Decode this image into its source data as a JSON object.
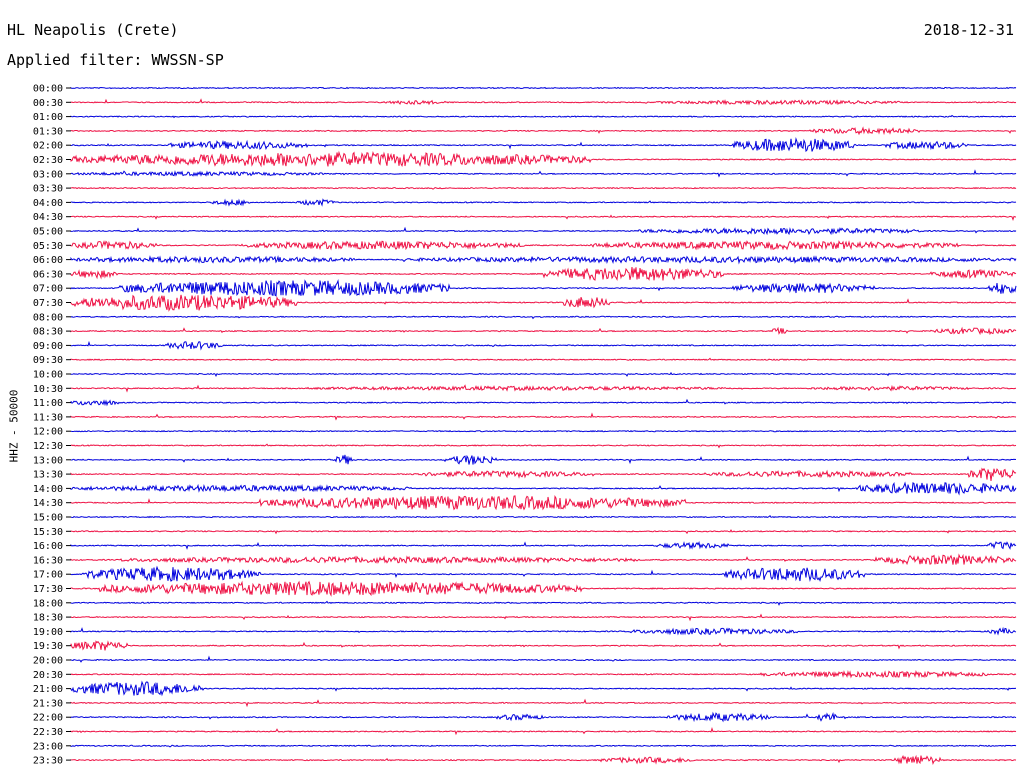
{
  "header": {
    "station": "HL Neapolis (Crete)",
    "date": "2018-12-31",
    "filter_label": "Applied filter:",
    "filter_value": "WWSSN-SP"
  },
  "colors": {
    "even_trace": "#0000dd",
    "odd_trace": "#ee1144",
    "text": "#000000",
    "background": "#ffffff"
  },
  "chart_data": {
    "type": "line",
    "title": "HL Neapolis (Crete)",
    "ylabel": "HHZ - 50000",
    "xlabel": "",
    "row_interval_minutes": 30,
    "rows": [
      {
        "label": "00:00",
        "activity": []
      },
      {
        "label": "00:30",
        "activity": [
          [
            0.33,
            0.4,
            2
          ],
          [
            0.62,
            0.88,
            2
          ]
        ]
      },
      {
        "label": "01:00",
        "activity": []
      },
      {
        "label": "01:30",
        "activity": [
          [
            0.78,
            0.9,
            3
          ]
        ]
      },
      {
        "label": "02:00",
        "activity": [
          [
            0.1,
            0.25,
            4
          ],
          [
            0.7,
            0.83,
            7
          ],
          [
            0.86,
            0.95,
            4
          ]
        ]
      },
      {
        "label": "02:30",
        "activity": [
          [
            0.0,
            0.55,
            7
          ]
        ]
      },
      {
        "label": "03:00",
        "activity": [
          [
            0.0,
            0.27,
            2
          ]
        ]
      },
      {
        "label": "03:30",
        "activity": []
      },
      {
        "label": "04:00",
        "activity": [
          [
            0.15,
            0.19,
            3
          ],
          [
            0.24,
            0.28,
            3
          ]
        ]
      },
      {
        "label": "04:30",
        "activity": []
      },
      {
        "label": "05:00",
        "activity": [
          [
            0.6,
            0.9,
            3
          ]
        ]
      },
      {
        "label": "05:30",
        "activity": [
          [
            0.0,
            0.09,
            4
          ],
          [
            0.18,
            0.48,
            4
          ],
          [
            0.55,
            0.94,
            4
          ]
        ]
      },
      {
        "label": "06:00",
        "activity": [
          [
            0.0,
            0.3,
            3
          ],
          [
            0.35,
            1.0,
            3
          ]
        ]
      },
      {
        "label": "06:30",
        "activity": [
          [
            0.0,
            0.05,
            4
          ],
          [
            0.5,
            0.69,
            7
          ],
          [
            0.91,
            1.0,
            4
          ]
        ]
      },
      {
        "label": "07:00",
        "activity": [
          [
            0.05,
            0.4,
            8
          ],
          [
            0.7,
            0.85,
            5
          ],
          [
            0.97,
            1.0,
            6
          ]
        ]
      },
      {
        "label": "07:30",
        "activity": [
          [
            0.0,
            0.24,
            8
          ],
          [
            0.52,
            0.57,
            6
          ]
        ]
      },
      {
        "label": "08:00",
        "activity": []
      },
      {
        "label": "08:30",
        "activity": [
          [
            0.74,
            0.76,
            3
          ],
          [
            0.91,
            1.0,
            3
          ]
        ]
      },
      {
        "label": "09:00",
        "activity": [
          [
            0.1,
            0.16,
            4
          ]
        ]
      },
      {
        "label": "09:30",
        "activity": []
      },
      {
        "label": "10:00",
        "activity": []
      },
      {
        "label": "10:30",
        "activity": [
          [
            0.25,
            0.7,
            2
          ],
          [
            0.78,
            0.95,
            2
          ]
        ]
      },
      {
        "label": "11:00",
        "activity": [
          [
            0.0,
            0.05,
            3
          ]
        ]
      },
      {
        "label": "11:30",
        "activity": []
      },
      {
        "label": "12:00",
        "activity": []
      },
      {
        "label": "12:30",
        "activity": []
      },
      {
        "label": "13:00",
        "activity": [
          [
            0.28,
            0.3,
            5
          ],
          [
            0.4,
            0.45,
            5
          ]
        ]
      },
      {
        "label": "13:30",
        "activity": [
          [
            0.36,
            0.55,
            3
          ],
          [
            0.67,
            0.89,
            3
          ],
          [
            0.95,
            1.0,
            7
          ]
        ]
      },
      {
        "label": "14:00",
        "activity": [
          [
            0.0,
            0.36,
            3
          ],
          [
            0.83,
            1.0,
            6
          ]
        ]
      },
      {
        "label": "14:30",
        "activity": [
          [
            0.2,
            0.65,
            7
          ]
        ]
      },
      {
        "label": "15:00",
        "activity": []
      },
      {
        "label": "15:30",
        "activity": []
      },
      {
        "label": "16:00",
        "activity": [
          [
            0.62,
            0.7,
            3
          ],
          [
            0.97,
            1.0,
            4
          ]
        ]
      },
      {
        "label": "16:30",
        "activity": [
          [
            0.05,
            0.6,
            3
          ],
          [
            0.85,
            1.0,
            5
          ]
        ]
      },
      {
        "label": "17:00",
        "activity": [
          [
            0.01,
            0.2,
            7
          ],
          [
            0.69,
            0.84,
            7
          ]
        ]
      },
      {
        "label": "17:30",
        "activity": [
          [
            0.03,
            0.54,
            7
          ]
        ]
      },
      {
        "label": "18:00",
        "activity": []
      },
      {
        "label": "18:30",
        "activity": []
      },
      {
        "label": "19:00",
        "activity": [
          [
            0.59,
            0.77,
            3
          ],
          [
            0.97,
            1.0,
            3
          ]
        ]
      },
      {
        "label": "19:30",
        "activity": [
          [
            0.0,
            0.06,
            5
          ]
        ]
      },
      {
        "label": "20:00",
        "activity": []
      },
      {
        "label": "20:30",
        "activity": [
          [
            0.73,
            0.97,
            3
          ]
        ]
      },
      {
        "label": "21:00",
        "activity": [
          [
            0.0,
            0.14,
            7
          ]
        ]
      },
      {
        "label": "21:30",
        "activity": []
      },
      {
        "label": "22:00",
        "activity": [
          [
            0.45,
            0.5,
            3
          ],
          [
            0.63,
            0.74,
            4
          ],
          [
            0.79,
            0.81,
            5
          ]
        ]
      },
      {
        "label": "22:30",
        "activity": []
      },
      {
        "label": "23:00",
        "activity": []
      },
      {
        "label": "23:30",
        "activity": [
          [
            0.56,
            0.66,
            3
          ],
          [
            0.87,
            0.92,
            5
          ]
        ]
      }
    ]
  }
}
